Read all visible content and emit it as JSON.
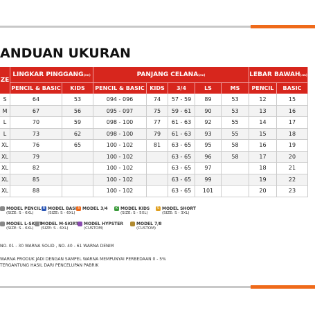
{
  "header": {
    "title": "ANDUAN UKURAN"
  },
  "table": {
    "groups": [
      "ZE",
      "LINGKAR PINGGANG",
      "PANJANG CELANA",
      "LEBAR BAWAH"
    ],
    "unit": "(cm)",
    "subheaders": [
      "PENCIL & BASIC",
      "KIDS",
      "PENCIL & BASIC",
      "KIDS",
      "3/4",
      "LS",
      "MS",
      "PENCIL",
      "BASIC"
    ],
    "rows": [
      [
        "S",
        "64",
        "53",
        "094 - 096",
        "74",
        "57 - 59",
        "89",
        "53",
        "12",
        "15"
      ],
      [
        "M",
        "67",
        "56",
        "095 - 097",
        "75",
        "59 - 61",
        "90",
        "53",
        "13",
        "16"
      ],
      [
        "L",
        "70",
        "59",
        "098 - 100",
        "77",
        "61 - 63",
        "92",
        "55",
        "14",
        "17"
      ],
      [
        "L",
        "73",
        "62",
        "098 - 100",
        "79",
        "61 - 63",
        "93",
        "55",
        "15",
        "18"
      ],
      [
        "XL",
        "76",
        "65",
        "100 - 102",
        "81",
        "63 - 65",
        "95",
        "58",
        "16",
        "19"
      ],
      [
        "XL",
        "79",
        "",
        "100 - 102",
        "",
        "63 - 65",
        "96",
        "58",
        "17",
        "20"
      ],
      [
        "XL",
        "82",
        "",
        "100 - 102",
        "",
        "63 - 65",
        "97",
        "",
        "18",
        "21"
      ],
      [
        "XL",
        "85",
        "",
        "100 - 102",
        "",
        "63 - 65",
        "99",
        "",
        "19",
        "22"
      ],
      [
        "XL",
        "88",
        "",
        "100 - 102",
        "",
        "63 - 65",
        "101",
        "",
        "20",
        "23"
      ]
    ]
  },
  "legend": [
    {
      "icon": "",
      "label": "MODEL PENCIL",
      "note": "(SIZE: S - 6XL)"
    },
    {
      "icon": "B",
      "label": "MODEL BASIC",
      "note": "(SIZE: S - 6XL)"
    },
    {
      "icon": "3",
      "label": "MODEL 3/4",
      "note": ""
    },
    {
      "icon": "K",
      "label": "MODEL KIDS",
      "note": "(SIZE: S - 5XL)"
    },
    {
      "icon": "S",
      "label": "MODEL SHORT",
      "note": "(SIZE: S - 3XL)"
    },
    {
      "icon": "",
      "label": "MODEL L-SKIRT",
      "note": "(SIZE: S - 6XL)"
    },
    {
      "icon": "",
      "label": "MODEL M-SKIRT",
      "note": "(SIZE: S - 6XL)"
    },
    {
      "icon": "",
      "label": "MODEL HYPSTER",
      "note": "(CUSTOM)"
    },
    {
      "icon": "",
      "label": "MODEL 7/8",
      "note": "(CUSTOM)"
    }
  ],
  "notes": [
    "NO. 01 - 30 WARNA SOLID , NO. 40 - 61 WARNA DENIM",
    "WARNA PRODUK JADI DENGAN SAMPEL WARNA MEMPUNYAI PERBEDAAN 0 - 5%",
    "TERGANTUNG HASIL DARI PENCELUPAN PABRIK"
  ]
}
